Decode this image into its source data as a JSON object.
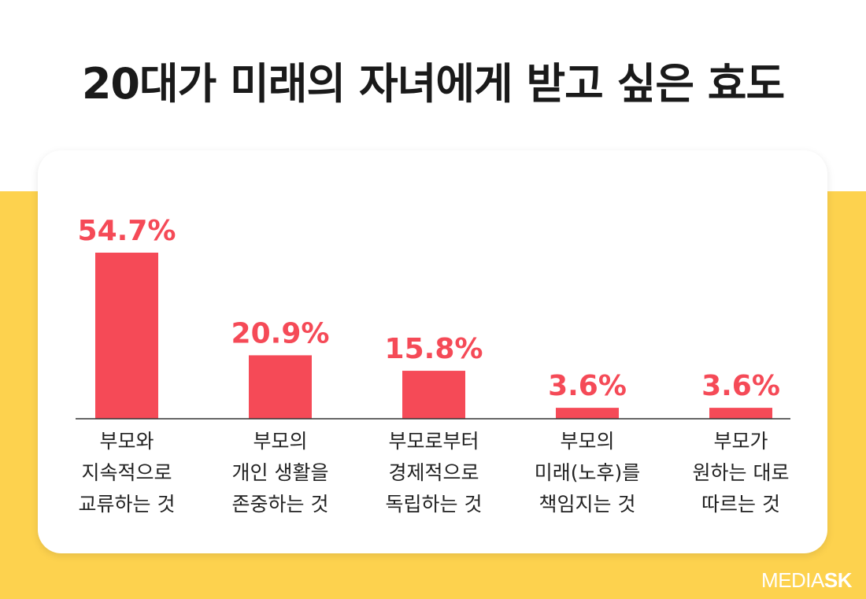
{
  "title": "20대가 미래의 자녀에게 받고 싶은 효도",
  "brand": {
    "part1": "MEDIA",
    "part2": "SK"
  },
  "colors": {
    "bar": "#f54a57",
    "value_text": "#f54a57",
    "background_band": "#fdd24e",
    "card": "#ffffff"
  },
  "chart_data": {
    "type": "bar",
    "categories": [
      [
        "부모와",
        "지속적으로",
        "교류하는 것"
      ],
      [
        "부모의",
        "개인 생활을",
        "존중하는 것"
      ],
      [
        "부모로부터",
        "경제적으로",
        "독립하는 것"
      ],
      [
        "부모의",
        "미래(노후)를",
        "책임지는 것"
      ],
      [
        "부모가",
        "원하는 대로",
        "따르는 것"
      ]
    ],
    "values": [
      54.7,
      20.9,
      15.8,
      3.6,
      3.6
    ],
    "value_labels": [
      "54.7%",
      "20.9%",
      "15.8%",
      "3.6%",
      "3.6%"
    ],
    "unit": "%",
    "ylim": [
      0,
      54.7
    ],
    "grid": false,
    "legend": "none"
  }
}
